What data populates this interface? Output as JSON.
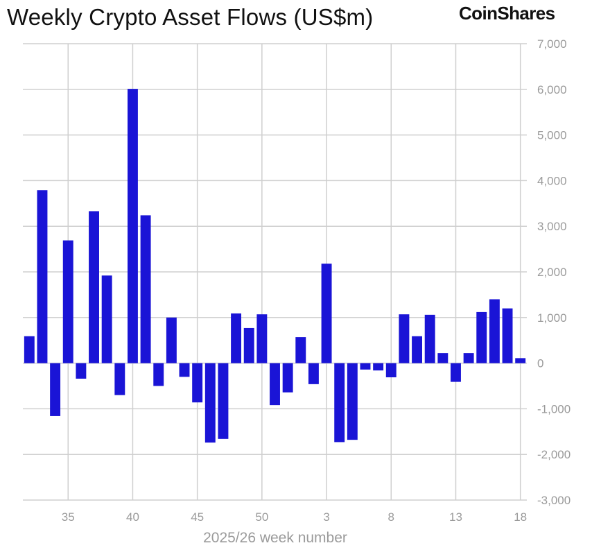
{
  "title": "Weekly Crypto Asset Flows (US$m)",
  "brand": "CoinShares",
  "chart_data": {
    "type": "bar",
    "title": "Weekly Crypto Asset Flows (US$m)",
    "xlabel": "2025/26 week number",
    "ylabel": "",
    "ylim": [
      -3000,
      7000
    ],
    "yticks": [
      7000,
      6000,
      5000,
      4000,
      3000,
      2000,
      1000,
      0,
      -1000,
      -2000,
      -3000
    ],
    "ytick_labels": [
      "7,000",
      "6,000",
      "5,000",
      "4,000",
      "3,000",
      "2,000",
      "1,000",
      "0",
      "-1,000",
      "-2,000",
      "-3,000"
    ],
    "categories": [
      "32",
      "33",
      "34",
      "35",
      "36",
      "37",
      "38",
      "39",
      "40",
      "41",
      "42",
      "43",
      "44",
      "45",
      "46",
      "47",
      "48",
      "49",
      "50",
      "51",
      "52",
      "1",
      "2",
      "3",
      "4",
      "5",
      "6",
      "7",
      "8",
      "9",
      "10",
      "11",
      "12",
      "13",
      "14",
      "15",
      "16",
      "17",
      "18"
    ],
    "xtick_labels": [
      "35",
      "40",
      "45",
      "50",
      "3",
      "8",
      "13",
      "18"
    ],
    "values": [
      590,
      3790,
      -1160,
      2690,
      -340,
      3330,
      1920,
      -700,
      6010,
      3240,
      -500,
      1000,
      -300,
      -860,
      -1740,
      -1660,
      1090,
      770,
      1070,
      -920,
      -640,
      570,
      -460,
      2180,
      -1730,
      -1680,
      -140,
      -160,
      -310,
      1070,
      590,
      1060,
      220,
      -410,
      220,
      1120,
      1400,
      1200,
      110
    ],
    "bar_color": "#1a14d6",
    "grid": true,
    "legend": "none"
  }
}
